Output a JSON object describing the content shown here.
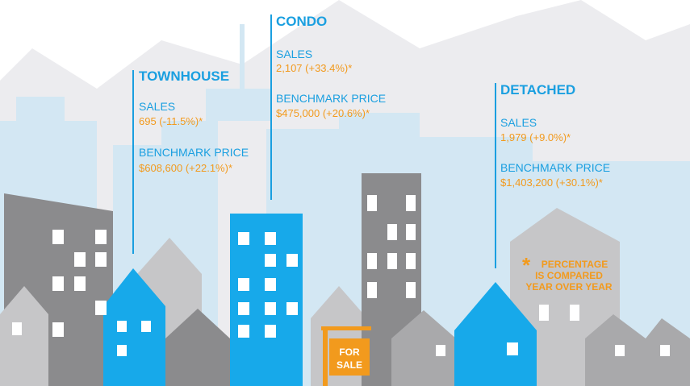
{
  "townhouse": {
    "title": "TOWNHOUSE",
    "sales_label": "SALES",
    "sales": "695 (-11.5%)*",
    "price_label": "BENCHMARK PRICE",
    "price": "$608,600 (+22.1%)*"
  },
  "condo": {
    "title": "CONDO",
    "sales_label": "SALES",
    "sales": "2,107 (+33.4%)*",
    "price_label": "BENCHMARK PRICE",
    "price": "$475,000 (+20.6%)*"
  },
  "detached": {
    "title": "DETACHED",
    "sales_label": "SALES",
    "sales": "1,979 (+9.0%)*",
    "price_label": "BENCHMARK PRICE",
    "price": "$1,403,200 (+30.1%)*"
  },
  "note": {
    "star": "*",
    "lines": [
      "PERCENTAGE",
      "IS COMPARED",
      "YEAR OVER YEAR"
    ]
  },
  "sign": {
    "lines": [
      "FOR",
      "SALE"
    ]
  }
}
